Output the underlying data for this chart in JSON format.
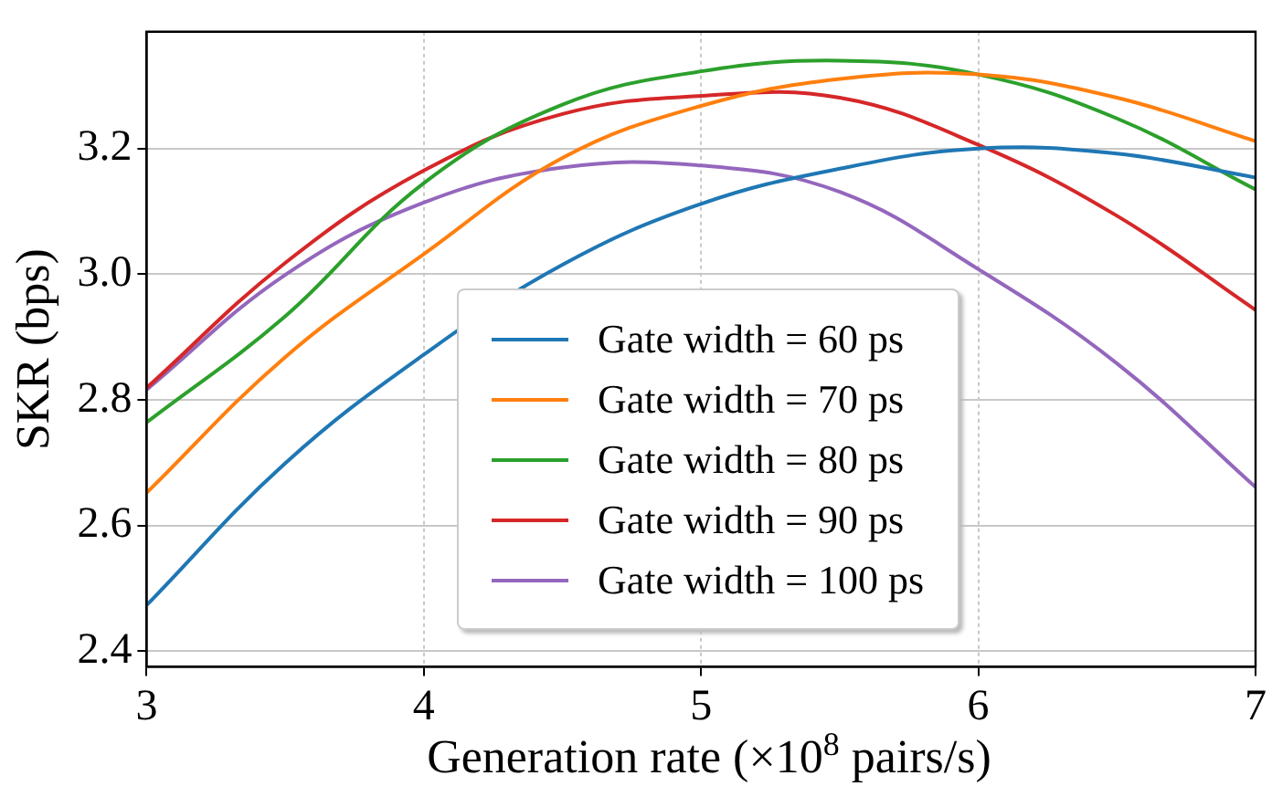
{
  "chart_data": {
    "type": "line",
    "xlabel": "Generation rate (×10$^{8}$ pairs/s)",
    "ylabel": "SKR (bps)",
    "x": [
      3,
      3.5,
      4,
      4.5,
      5,
      5.5,
      6,
      6.5,
      7
    ],
    "series": [
      {
        "name": "Gate width = 60 ps",
        "color": "#1f77b4",
        "values": [
          2.473,
          2.699,
          2.872,
          3.015,
          3.112,
          3.168,
          3.2,
          3.192,
          3.154
        ]
      },
      {
        "name": "Gate width = 70 ps",
        "color": "#ff7f0e",
        "values": [
          2.652,
          2.868,
          3.032,
          3.185,
          3.268,
          3.311,
          3.318,
          3.281,
          3.212
        ]
      },
      {
        "name": "Gate width = 80 ps",
        "color": "#2ca02c",
        "values": [
          2.764,
          2.933,
          3.145,
          3.27,
          3.323,
          3.34,
          3.318,
          3.248,
          3.135
        ]
      },
      {
        "name": "Gate width = 90 ps",
        "color": "#d62728",
        "values": [
          2.819,
          3.018,
          3.165,
          3.255,
          3.284,
          3.281,
          3.206,
          3.093,
          2.943
        ]
      },
      {
        "name": "Gate width = 100 ps",
        "color": "#9467bd",
        "values": [
          2.816,
          2.999,
          3.114,
          3.17,
          3.173,
          3.131,
          3.008,
          2.858,
          2.661
        ]
      }
    ],
    "xlim": [
      3,
      7
    ],
    "xticks": [
      3,
      4,
      5,
      6,
      7
    ],
    "ylim": [
      2.375,
      3.386
    ],
    "yticks": [
      2.4,
      2.6,
      2.8,
      {
        "value": 3,
        "label": "3.0"
      },
      3.2
    ],
    "grid": true,
    "legend": "bottom",
    "marker": "none",
    "line_style": "solid"
  }
}
